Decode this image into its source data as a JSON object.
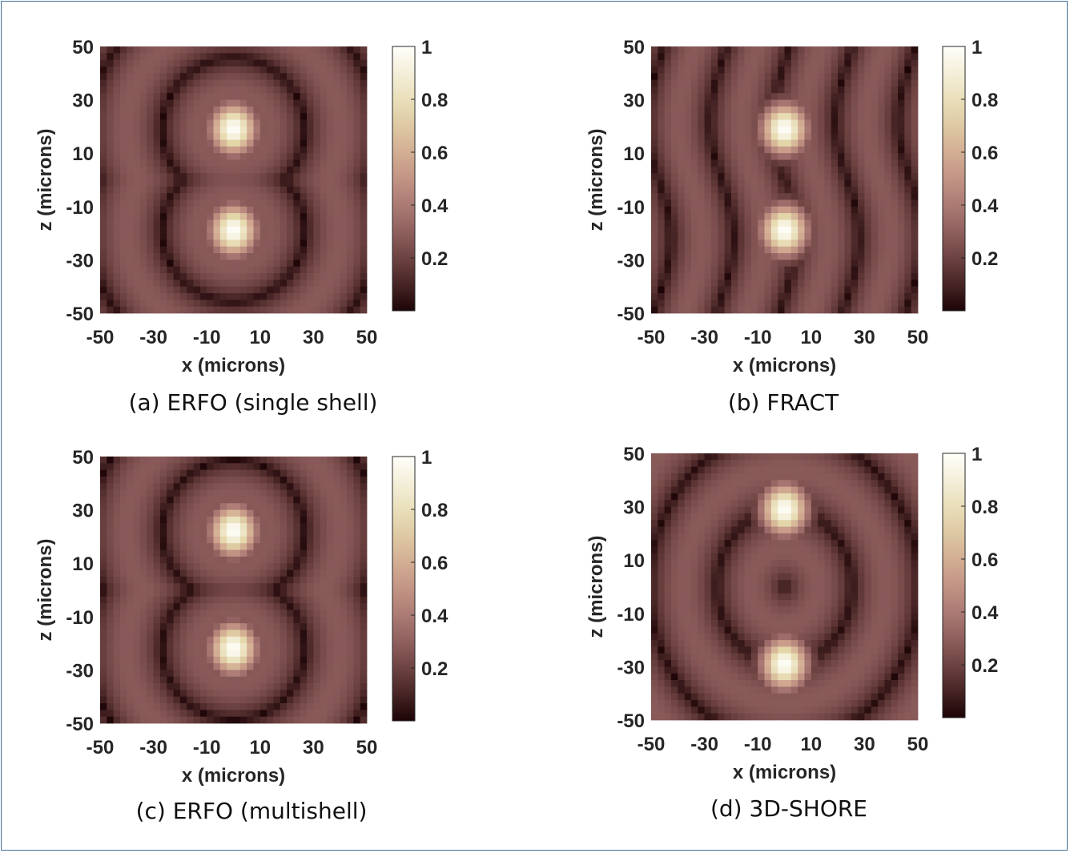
{
  "chart_data": [
    {
      "type": "heatmap",
      "caption": "(a) ERFO (single shell)",
      "xlabel": "x (microns)",
      "ylabel": "z (microns)",
      "xlim": [
        -50,
        50
      ],
      "ylim": [
        -50,
        50
      ],
      "x_ticks": [
        "-50",
        "-30",
        "-10",
        "10",
        "30",
        "50"
      ],
      "y_ticks": [
        "50",
        "30",
        "10",
        "-10",
        "-30",
        "-50"
      ],
      "colorbar_ticks": [
        "1",
        "0.8",
        "0.6",
        "0.4",
        "0.2"
      ],
      "clim": [
        0,
        1
      ],
      "peaks": [
        {
          "x": 0,
          "z": 19,
          "value": 1
        },
        {
          "x": 0,
          "z": -19,
          "value": 1
        }
      ],
      "grid": false
    },
    {
      "type": "heatmap",
      "caption": "(b) FRACT",
      "xlabel": "x (microns)",
      "ylabel": "z (microns)",
      "xlim": [
        -50,
        50
      ],
      "ylim": [
        -50,
        50
      ],
      "x_ticks": [
        "-50",
        "-30",
        "-10",
        "10",
        "30",
        "50"
      ],
      "y_ticks": [
        "50",
        "30",
        "10",
        "-10",
        "-30",
        "-50"
      ],
      "colorbar_ticks": [
        "1",
        "0.8",
        "0.6",
        "0.4",
        "0.2"
      ],
      "clim": [
        0,
        1
      ],
      "peaks": [
        {
          "x": 0,
          "z": 19,
          "value": 1
        },
        {
          "x": 0,
          "z": -19,
          "value": 1
        }
      ],
      "grid": false
    },
    {
      "type": "heatmap",
      "caption": "(c) ERFO (multishell)",
      "xlabel": "x (microns)",
      "ylabel": "z (microns)",
      "xlim": [
        -50,
        50
      ],
      "ylim": [
        -50,
        50
      ],
      "x_ticks": [
        "-50",
        "-30",
        "-10",
        "10",
        "30",
        "50"
      ],
      "y_ticks": [
        "50",
        "30",
        "10",
        "-10",
        "-30",
        "-50"
      ],
      "colorbar_ticks": [
        "1",
        "0.8",
        "0.6",
        "0.4",
        "0.2"
      ],
      "clim": [
        0,
        1
      ],
      "peaks": [
        {
          "x": 0,
          "z": 22,
          "value": 1
        },
        {
          "x": 0,
          "z": -22,
          "value": 1
        }
      ],
      "grid": false
    },
    {
      "type": "heatmap",
      "caption": "(d) 3D-SHORE",
      "xlabel": "x (microns)",
      "ylabel": "z (microns)",
      "xlim": [
        -50,
        50
      ],
      "ylim": [
        -50,
        50
      ],
      "x_ticks": [
        "-50",
        "-30",
        "-10",
        "10",
        "30",
        "50"
      ],
      "y_ticks": [
        "50",
        "30",
        "10",
        "-10",
        "-30",
        "-50"
      ],
      "colorbar_ticks": [
        "1",
        "0.8",
        "0.6",
        "0.4",
        "0.2"
      ],
      "clim": [
        0,
        1
      ],
      "peaks": [
        {
          "x": 0,
          "z": 29,
          "value": 1
        },
        {
          "x": 0,
          "z": -29,
          "value": 1
        }
      ],
      "grid": false
    }
  ]
}
